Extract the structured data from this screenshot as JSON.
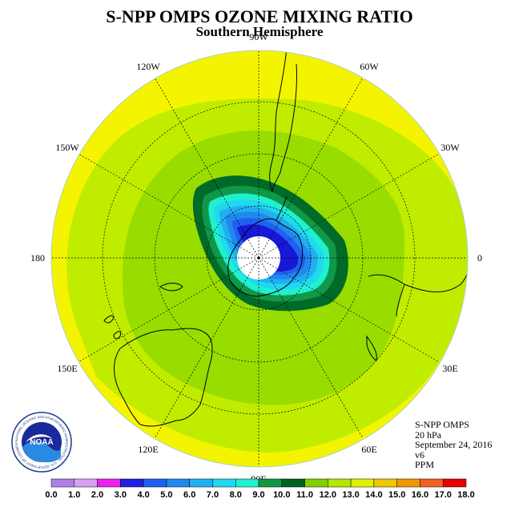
{
  "title": "S-NPP OMPS OZONE MIXING RATIO",
  "subtitle": "Southern Hemisphere",
  "longitude_labels": [
    {
      "text": "90W",
      "azimuth_deg": 270
    },
    {
      "text": "60W",
      "azimuth_deg": 300
    },
    {
      "text": "30W",
      "azimuth_deg": 330
    },
    {
      "text": "0",
      "azimuth_deg": 0
    },
    {
      "text": "30E",
      "azimuth_deg": 30
    },
    {
      "text": "60E",
      "azimuth_deg": 60
    },
    {
      "text": "90E",
      "azimuth_deg": 90
    },
    {
      "text": "120E",
      "azimuth_deg": 120
    },
    {
      "text": "150E",
      "azimuth_deg": 150
    },
    {
      "text": "180",
      "azimuth_deg": 180
    },
    {
      "text": "150W",
      "azimuth_deg": 210
    },
    {
      "text": "120W",
      "azimuth_deg": 240
    }
  ],
  "info": {
    "line1": "S-NPP OMPS",
    "line2": "20 hPa",
    "line3": "September 24, 2016",
    "line4": "v6",
    "line5": "PPM"
  },
  "logo": {
    "text": "NOAA",
    "ring_text": "NATIONAL OCEANIC AND ATMOSPHERIC ADMINISTRATION · U.S. DEPARTMENT OF COMMERCE"
  },
  "colorbar": {
    "ticks": [
      "0.0",
      "1.0",
      "2.0",
      "3.0",
      "4.0",
      "5.0",
      "6.0",
      "7.0",
      "8.0",
      "9.0",
      "10.0",
      "11.0",
      "12.0",
      "13.0",
      "14.0",
      "15.0",
      "16.0",
      "17.0",
      "18.0"
    ],
    "colors": [
      "#b07ee8",
      "#d9a0f0",
      "#ee20ee",
      "#2020e0",
      "#2060f0",
      "#2088f0",
      "#20b0f0",
      "#20d8f0",
      "#20f0d0",
      "#109840",
      "#006020",
      "#80d000",
      "#b0e800",
      "#e0f000",
      "#f0c800",
      "#f09800",
      "#f06020",
      "#e80000",
      "#885020"
    ]
  },
  "map_fields": {
    "min_value_ppm": 3.0,
    "max_value_ppm": 13.0
  }
}
